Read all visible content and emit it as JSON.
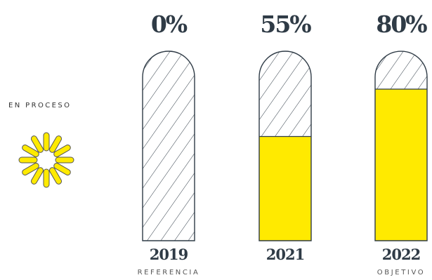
{
  "status": {
    "label": "EN PROCESO",
    "icon": "loading-spinner-icon"
  },
  "colors": {
    "fill": "#ffea00",
    "outline": "#2f3b46",
    "text": "#2f3b46",
    "spinner": "#ffea00"
  },
  "chart_data": {
    "type": "bar",
    "categories": [
      "2019",
      "2021",
      "2022"
    ],
    "values": [
      0,
      55,
      80
    ],
    "value_labels": [
      "0%",
      "55%",
      "80%"
    ],
    "sublabels": [
      "REFERENCIA",
      "",
      "OBJETIVO"
    ],
    "unfilled_pattern": "diagonal-hatch",
    "ylim": [
      0,
      100
    ],
    "title": "",
    "xlabel": "",
    "ylabel": ""
  }
}
